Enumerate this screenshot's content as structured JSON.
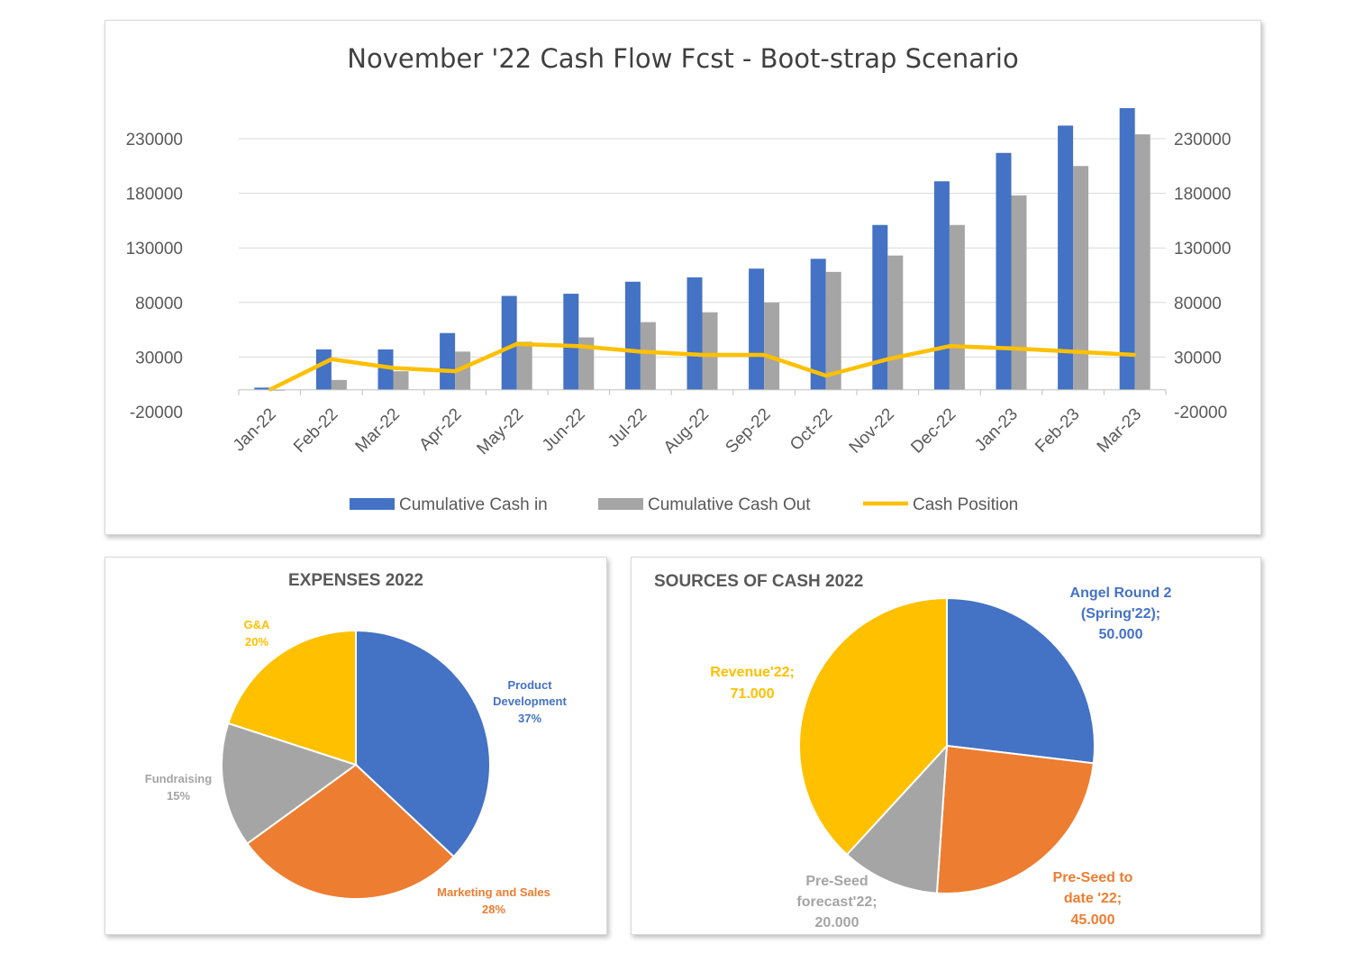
{
  "chart_data": [
    {
      "type": "bar",
      "title": "November '22 Cash Flow  Fcst - Boot-strap Scenario",
      "categories": [
        "Jan-22",
        "Feb-22",
        "Mar-22",
        "Apr-22",
        "May-22",
        "Jun-22",
        "Jul-22",
        "Aug-22",
        "Sep-22",
        "Oct-22",
        "Nov-22",
        "Dec-22",
        "Jan-23",
        "Feb-23",
        "Mar-23"
      ],
      "series": [
        {
          "name": "Cumulative Cash in",
          "kind": "bar",
          "color": "#4472C4",
          "values": [
            2000,
            37000,
            37000,
            52000,
            86000,
            88000,
            99000,
            103000,
            111000,
            120000,
            151000,
            191000,
            217000,
            242000,
            258000
          ]
        },
        {
          "name": "Cumulative Cash Out",
          "kind": "bar",
          "color": "#A5A5A5",
          "values": [
            -500,
            9000,
            17000,
            35000,
            44000,
            48000,
            62000,
            71000,
            80000,
            108000,
            123000,
            151000,
            178000,
            205000,
            234000
          ]
        },
        {
          "name": "Cash Position",
          "kind": "line",
          "color": "#FFC000",
          "values": [
            0,
            28000,
            20000,
            17000,
            42000,
            40000,
            35000,
            32000,
            32000,
            13000,
            28000,
            40000,
            38000,
            35000,
            32000
          ]
        }
      ],
      "y_ticks": [
        "230000",
        "180000",
        "130000",
        "80000",
        "30000",
        "-20000"
      ],
      "ylim": [
        -20000,
        265000
      ],
      "legend_position": "bottom",
      "grid": true
    },
    {
      "type": "pie",
      "title": "EXPENSES 2022",
      "slices": [
        {
          "label": "Product Development",
          "pct_label": "37%",
          "value": 37,
          "color": "#4472C4"
        },
        {
          "label": "Marketing and Sales",
          "pct_label": "28%",
          "value": 28,
          "color": "#ED7D31"
        },
        {
          "label": "Fundraising",
          "pct_label": "15%",
          "value": 15,
          "color": "#A5A5A5"
        },
        {
          "label": "G&A",
          "pct_label": "20%",
          "value": 20,
          "color": "#FFC000"
        }
      ]
    },
    {
      "type": "pie",
      "title": "SOURCES OF CASH 2022",
      "slices": [
        {
          "label": "Angel Round 2 (Spring'22);",
          "value_label": "50.000",
          "value": 50000,
          "color": "#4472C4"
        },
        {
          "label": "Pre-Seed to date '22;",
          "value_label": "45.000",
          "value": 45000,
          "color": "#ED7D31"
        },
        {
          "label": "Pre-Seed forecast'22;",
          "value_label": "20.000",
          "value": 20000,
          "color": "#A5A5A5"
        },
        {
          "label": "Revenue'22;",
          "value_label": "71.000",
          "value": 71000,
          "color": "#FFC000"
        }
      ]
    }
  ]
}
